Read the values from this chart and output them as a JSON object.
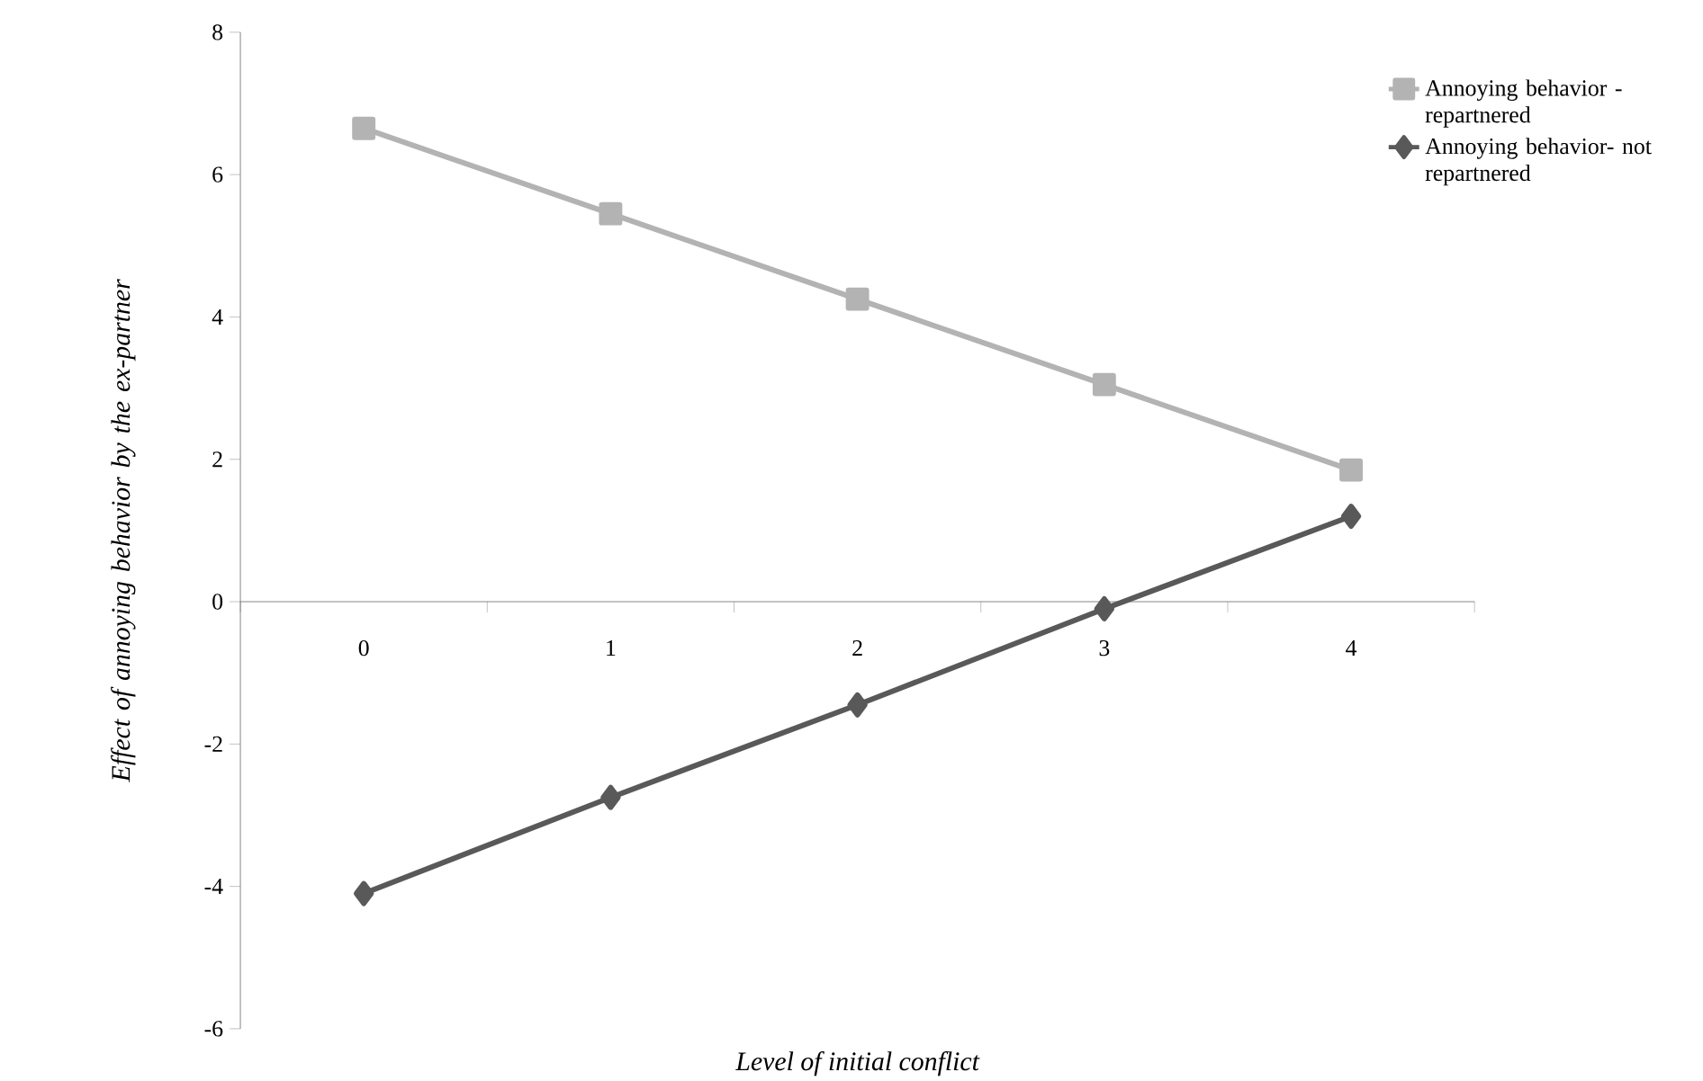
{
  "chart_data": {
    "type": "line",
    "xlabel": "Level of initial conflict",
    "ylabel": "Effect of annoying behavior by the ex-partner",
    "categories": [
      "0",
      "1",
      "2",
      "3",
      "4"
    ],
    "ylim": [
      -6,
      8
    ],
    "yticks": [
      -6,
      -4,
      -2,
      0,
      2,
      4,
      6,
      8
    ],
    "legend": "top right",
    "series": [
      {
        "name": "Annoying behavior - repartnered",
        "color": "#b3b3b3",
        "marker": "square",
        "values": [
          6.65,
          5.45,
          4.25,
          3.05,
          1.85
        ]
      },
      {
        "name": "Annoying behavior- not repartnered",
        "color": "#595959",
        "marker": "diamond",
        "values": [
          -4.1,
          -2.75,
          -1.45,
          -0.1,
          1.2
        ]
      }
    ]
  }
}
